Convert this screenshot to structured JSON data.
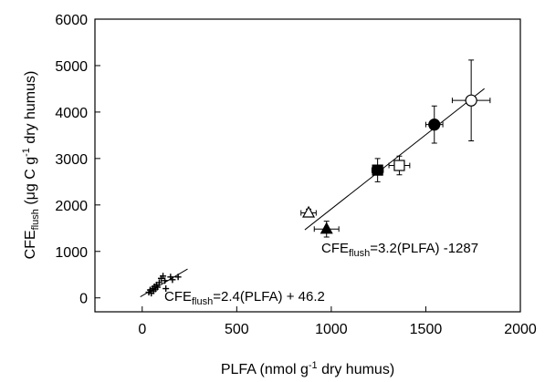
{
  "chart_data": {
    "type": "scatter",
    "title": "",
    "xlabel": {
      "main": "PLFA (nmol g",
      "sup": "-1",
      "rest": " dry humus)"
    },
    "ylabel": {
      "base": "CFE",
      "sub": "flush",
      "mid": " (μg C g",
      "sup": "-1",
      "rest": " dry humus)"
    },
    "xlim": [
      -250,
      2000
    ],
    "ylim": [
      -300,
      6000
    ],
    "xticks": [
      0,
      500,
      1000,
      1500,
      2000
    ],
    "yticks": [
      0,
      1000,
      2000,
      3000,
      4000,
      5000,
      6000
    ],
    "grid": false,
    "legend": "none",
    "series": [
      {
        "marker": "plus",
        "points": [
          {
            "x": 35,
            "y": 120
          },
          {
            "x": 42,
            "y": 170
          },
          {
            "x": 48,
            "y": 100
          },
          {
            "x": 55,
            "y": 200
          },
          {
            "x": 60,
            "y": 150
          },
          {
            "x": 65,
            "y": 240
          },
          {
            "x": 70,
            "y": 190
          },
          {
            "x": 75,
            "y": 280
          },
          {
            "x": 80,
            "y": 230
          },
          {
            "x": 90,
            "y": 330
          },
          {
            "x": 100,
            "y": 420
          },
          {
            "x": 110,
            "y": 470
          },
          {
            "x": 120,
            "y": 370
          },
          {
            "x": 125,
            "y": 200
          },
          {
            "x": 150,
            "y": 450
          },
          {
            "x": 160,
            "y": 390
          },
          {
            "x": 190,
            "y": 450
          }
        ]
      },
      {
        "marker": "markers-with-errorbars",
        "points": [
          {
            "shape": "open-circle",
            "x": 1740,
            "y": 4250,
            "xerr": 100,
            "yerr": 870
          },
          {
            "shape": "filled-circle",
            "x": 1545,
            "y": 3730,
            "xerr": 45,
            "yerr": 400
          },
          {
            "shape": "open-square",
            "x": 1360,
            "y": 2850,
            "xerr": 55,
            "yerr": 200
          },
          {
            "shape": "filled-square",
            "x": 1245,
            "y": 2750,
            "xerr": 30,
            "yerr": 250
          },
          {
            "shape": "open-triangle",
            "x": 880,
            "y": 1830,
            "xerr": 40,
            "yerr": 80
          },
          {
            "shape": "filled-triangle",
            "x": 975,
            "y": 1480,
            "xerr": 65,
            "yerr": 170
          }
        ]
      }
    ],
    "fit_lines": [
      {
        "slope": 2.4,
        "intercept": 46.2,
        "x_range": [
          -10,
          240
        ]
      },
      {
        "slope": 3.2,
        "intercept": -1287,
        "x_range": [
          860,
          1810
        ]
      }
    ],
    "annotations": [
      {
        "base": "CFE",
        "sub": "flush",
        "rest": "=3.2(PLFA) -1287"
      },
      {
        "base": "CFE",
        "sub": "flush",
        "rest": "=2.4(PLFA) + 46.2"
      }
    ]
  }
}
